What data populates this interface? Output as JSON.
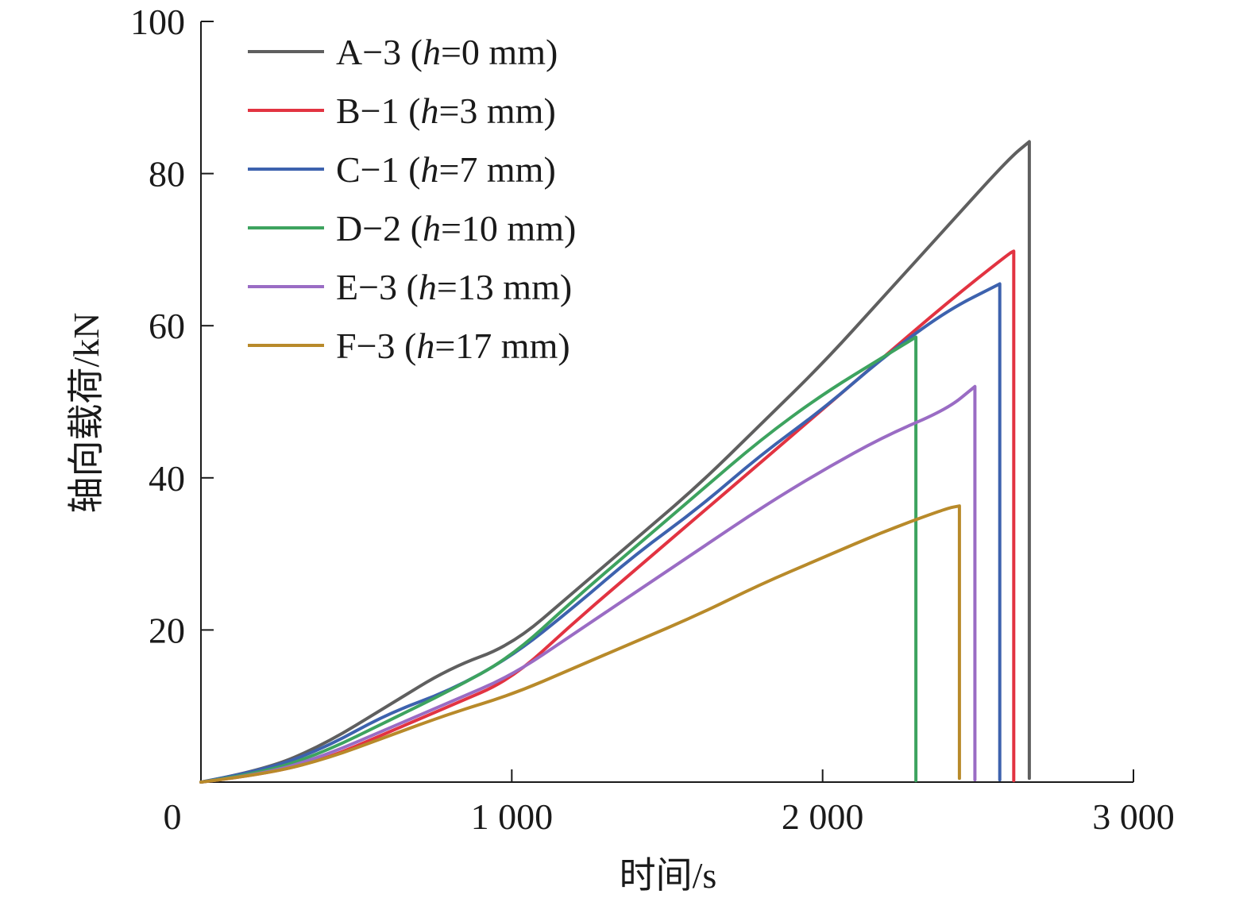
{
  "chart_data": {
    "type": "line",
    "xlabel": "时间/s",
    "ylabel": "轴向载荷/kN",
    "xlim": [
      0,
      3000
    ],
    "ylim": [
      0,
      100
    ],
    "x_ticks": [
      0,
      1000,
      2000,
      3000
    ],
    "x_tick_labels": [
      "0",
      "1 000",
      "2 000",
      "3 000"
    ],
    "y_ticks": [
      20,
      40,
      60,
      80,
      100
    ],
    "y_tick_labels": [
      "20",
      "40",
      "60",
      "80",
      "100"
    ],
    "grid": false,
    "legend_position": "top-left",
    "series": [
      {
        "name": "A−3 (h=0 mm)",
        "prefix": "A−3 (",
        "param": "h",
        "suffix": "=0 mm)",
        "color": "#5f5f5f",
        "points": [
          [
            0,
            0
          ],
          [
            200,
            1.5
          ],
          [
            400,
            5
          ],
          [
            600,
            10
          ],
          [
            800,
            15
          ],
          [
            1000,
            18
          ],
          [
            1200,
            25
          ],
          [
            1400,
            32
          ],
          [
            1600,
            39
          ],
          [
            1800,
            47
          ],
          [
            2000,
            55
          ],
          [
            2200,
            64
          ],
          [
            2400,
            73
          ],
          [
            2600,
            82
          ],
          [
            2665,
            84.2
          ],
          [
            2665,
            0.5
          ]
        ]
      },
      {
        "name": "B−1 (h=3 mm)",
        "prefix": "B−1 (",
        "param": "h",
        "suffix": "=3 mm)",
        "color": "#e23341",
        "points": [
          [
            0,
            0
          ],
          [
            200,
            1
          ],
          [
            400,
            3
          ],
          [
            600,
            6.5
          ],
          [
            800,
            10
          ],
          [
            1000,
            13.5
          ],
          [
            1200,
            21
          ],
          [
            1400,
            28
          ],
          [
            1600,
            35
          ],
          [
            1800,
            42
          ],
          [
            2000,
            49
          ],
          [
            2200,
            56
          ],
          [
            2400,
            63
          ],
          [
            2600,
            69.5
          ],
          [
            2615,
            69.8
          ],
          [
            2615,
            0.2
          ]
        ]
      },
      {
        "name": "C−1 (h=7 mm)",
        "prefix": "C−1 (",
        "param": "h",
        "suffix": "=7 mm)",
        "color": "#3d62ae",
        "points": [
          [
            0,
            0
          ],
          [
            200,
            1.5
          ],
          [
            400,
            4.5
          ],
          [
            600,
            9
          ],
          [
            800,
            12
          ],
          [
            1000,
            16.5
          ],
          [
            1200,
            23
          ],
          [
            1400,
            30
          ],
          [
            1600,
            36
          ],
          [
            1800,
            43
          ],
          [
            2000,
            49
          ],
          [
            2200,
            56
          ],
          [
            2400,
            62
          ],
          [
            2570,
            65.5
          ],
          [
            2570,
            0.3
          ]
        ]
      },
      {
        "name": "D−2 (h=10 mm)",
        "prefix": "D−2 (",
        "param": "h",
        "suffix": "=10 mm)",
        "color": "#3da35f",
        "points": [
          [
            0,
            0
          ],
          [
            200,
            1.2
          ],
          [
            400,
            4
          ],
          [
            600,
            8
          ],
          [
            800,
            12
          ],
          [
            1000,
            16.5
          ],
          [
            1200,
            24
          ],
          [
            1400,
            31
          ],
          [
            1600,
            38
          ],
          [
            1800,
            45
          ],
          [
            2000,
            51
          ],
          [
            2200,
            56
          ],
          [
            2300,
            58.5
          ],
          [
            2300,
            0.2
          ]
        ]
      },
      {
        "name": "E−3 (h=13 mm)",
        "prefix": "E−3 (",
        "param": "h",
        "suffix": "=13 mm)",
        "color": "#9a6cc4",
        "points": [
          [
            0,
            0
          ],
          [
            200,
            1
          ],
          [
            400,
            3.5
          ],
          [
            600,
            7
          ],
          [
            800,
            10.5
          ],
          [
            1000,
            14
          ],
          [
            1200,
            19.5
          ],
          [
            1400,
            25
          ],
          [
            1600,
            30.5
          ],
          [
            1800,
            36
          ],
          [
            2000,
            41
          ],
          [
            2200,
            45.5
          ],
          [
            2400,
            49
          ],
          [
            2490,
            52
          ],
          [
            2490,
            0.3
          ]
        ]
      },
      {
        "name": "F−3 (h=17 mm)",
        "prefix": "F−3 (",
        "param": "h",
        "suffix": "=17 mm)",
        "color": "#b88a2a",
        "points": [
          [
            0,
            0
          ],
          [
            200,
            1
          ],
          [
            400,
            3
          ],
          [
            600,
            6
          ],
          [
            800,
            9
          ],
          [
            1000,
            11.5
          ],
          [
            1200,
            15
          ],
          [
            1400,
            18.5
          ],
          [
            1600,
            22
          ],
          [
            1800,
            26
          ],
          [
            2000,
            29.5
          ],
          [
            2200,
            33
          ],
          [
            2400,
            36
          ],
          [
            2440,
            36.3
          ],
          [
            2440,
            0.5
          ]
        ]
      }
    ]
  }
}
